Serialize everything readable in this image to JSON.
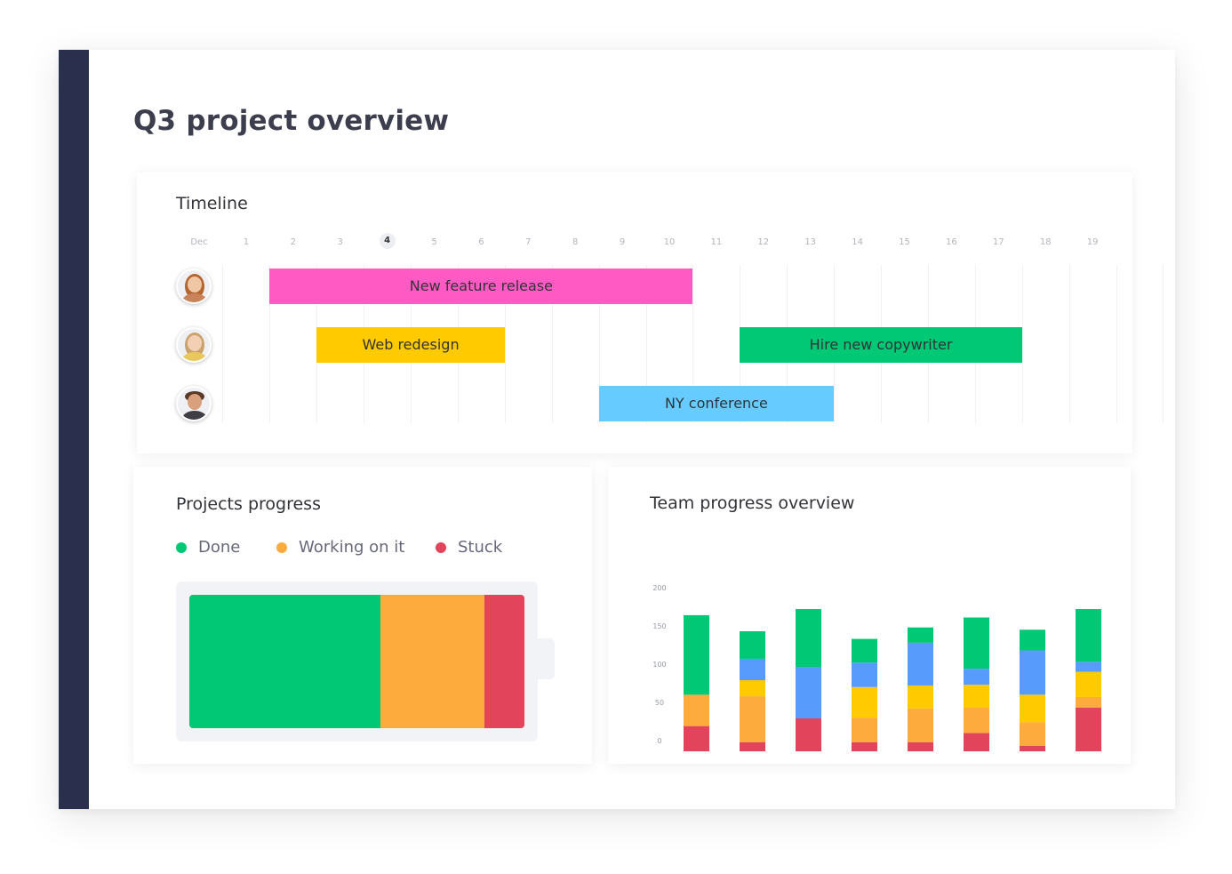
{
  "page": {
    "title": "Q3 project overview"
  },
  "colors": {
    "pink": "#ff5ac4",
    "yellow": "#ffcb00",
    "green": "#00c875",
    "light_blue": "#66ccff",
    "blue": "#579bfc",
    "orange": "#fdab3d",
    "red": "#e2445c",
    "rail": "#292f4c"
  },
  "timeline": {
    "title": "Timeline",
    "days": [
      "Dec",
      "1",
      "2",
      "3",
      "4",
      "5",
      "6",
      "7",
      "8",
      "9",
      "10",
      "11",
      "12",
      "13",
      "14",
      "15",
      "16",
      "17",
      "18",
      "19"
    ],
    "today": "4",
    "rows": [
      {
        "avatar": "woman-red-hair-avatar",
        "bars": [
          {
            "label": "New feature release",
            "start": "2",
            "end": "10",
            "color": "#ff5ac4"
          }
        ]
      },
      {
        "avatar": "woman-blonde-avatar",
        "bars": [
          {
            "label": "Web redesign",
            "start": "3",
            "end": "6",
            "color": "#ffcb00"
          },
          {
            "label": "Hire new copywriter",
            "start": "12",
            "end": "17",
            "color": "#00c875"
          }
        ]
      },
      {
        "avatar": "man-beard-avatar",
        "bars": [
          {
            "label": "NY conference",
            "start": "9",
            "end": "13",
            "color": "#66ccff"
          }
        ]
      }
    ]
  },
  "projects_progress": {
    "title": "Projects progress",
    "legend": [
      {
        "label": "Done",
        "color": "#00c875"
      },
      {
        "label": "Working on it",
        "color": "#fdab3d"
      },
      {
        "label": "Stuck",
        "color": "#e2445c"
      }
    ],
    "shares": [
      {
        "status": "Done",
        "value": 0.57,
        "color": "#00c875"
      },
      {
        "status": "Working on it",
        "value": 0.31,
        "color": "#fdab3d"
      },
      {
        "status": "Stuck",
        "value": 0.12,
        "color": "#e2445c"
      }
    ]
  },
  "team_progress": {
    "title": "Team progress overview"
  },
  "chart_data": {
    "type": "bar",
    "stacked": true,
    "title": "Team progress overview",
    "xlabel": "",
    "ylabel": "",
    "ylim": [
      0,
      200
    ],
    "yticks": [
      0,
      50,
      100,
      150,
      200
    ],
    "categories": [
      "member-1-avatar",
      "member-2-avatar",
      "member-3-avatar",
      "member-4-avatar",
      "member-5-avatar",
      "member-6-avatar",
      "member-7-avatar",
      "member-8-avatar"
    ],
    "series": [
      {
        "values": [
          33,
          12,
          43,
          12,
          12,
          24,
          7,
          57
        ],
        "color": "#e2445c"
      },
      {
        "values": [
          41,
          60,
          0,
          32,
          44,
          33,
          31,
          14
        ],
        "color": "#fdab3d"
      },
      {
        "values": [
          0,
          21,
          0,
          40,
          30,
          30,
          36,
          33
        ],
        "color": "#ffcb00"
      },
      {
        "values": [
          0,
          28,
          67,
          32,
          56,
          21,
          58,
          13
        ],
        "color": "#579bfc"
      },
      {
        "values": [
          104,
          36,
          76,
          31,
          20,
          67,
          27,
          69
        ],
        "color": "#00c875"
      }
    ],
    "grid": false,
    "legend": "none"
  }
}
